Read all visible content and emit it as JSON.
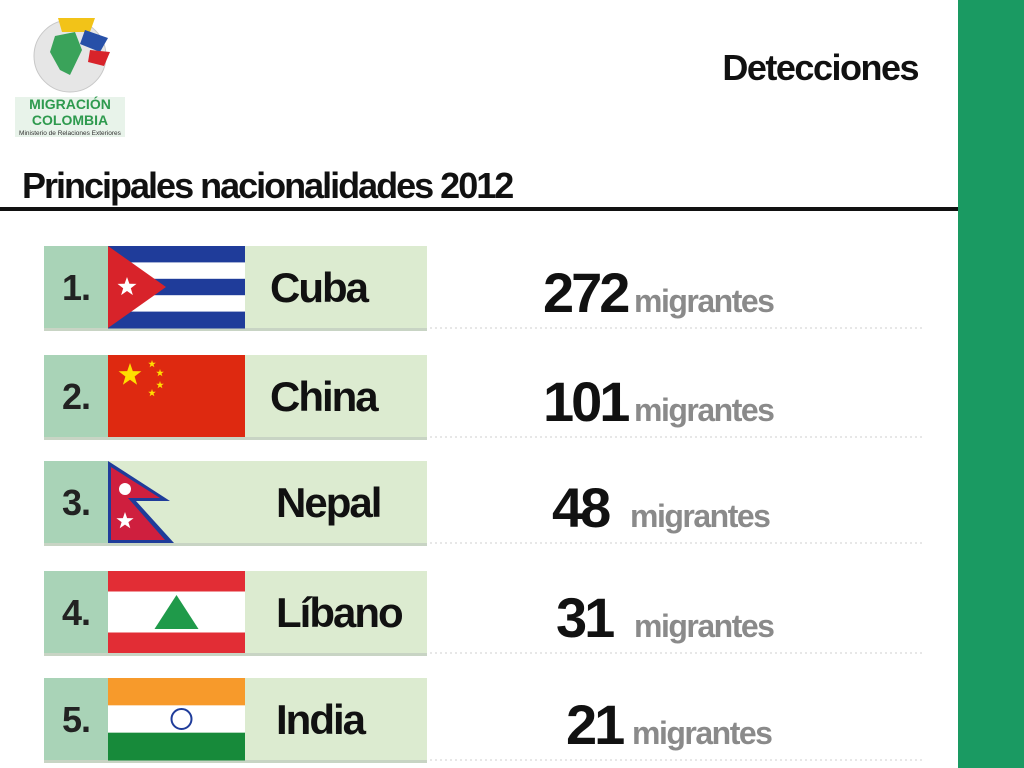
{
  "logo": {
    "line1": "MIGRACIÓN",
    "line2": "COLOMBIA",
    "line3": "Ministerio de Relaciones Exteriores"
  },
  "header": {
    "section": "Detecciones",
    "title": "Principales nacionalidades 2012"
  },
  "rows": [
    {
      "rank": "1.",
      "country": "Cuba",
      "count": "272",
      "unit": "migrantes"
    },
    {
      "rank": "2.",
      "country": "China",
      "count": "101",
      "unit": "migrantes"
    },
    {
      "rank": "3.",
      "country": "Nepal",
      "count": "48",
      "unit": "migrantes"
    },
    {
      "rank": "4.",
      "country": "Líbano",
      "count": "31",
      "unit": "migrantes"
    },
    {
      "rank": "5.",
      "country": "India",
      "count": "21",
      "unit": "migrantes"
    }
  ]
}
